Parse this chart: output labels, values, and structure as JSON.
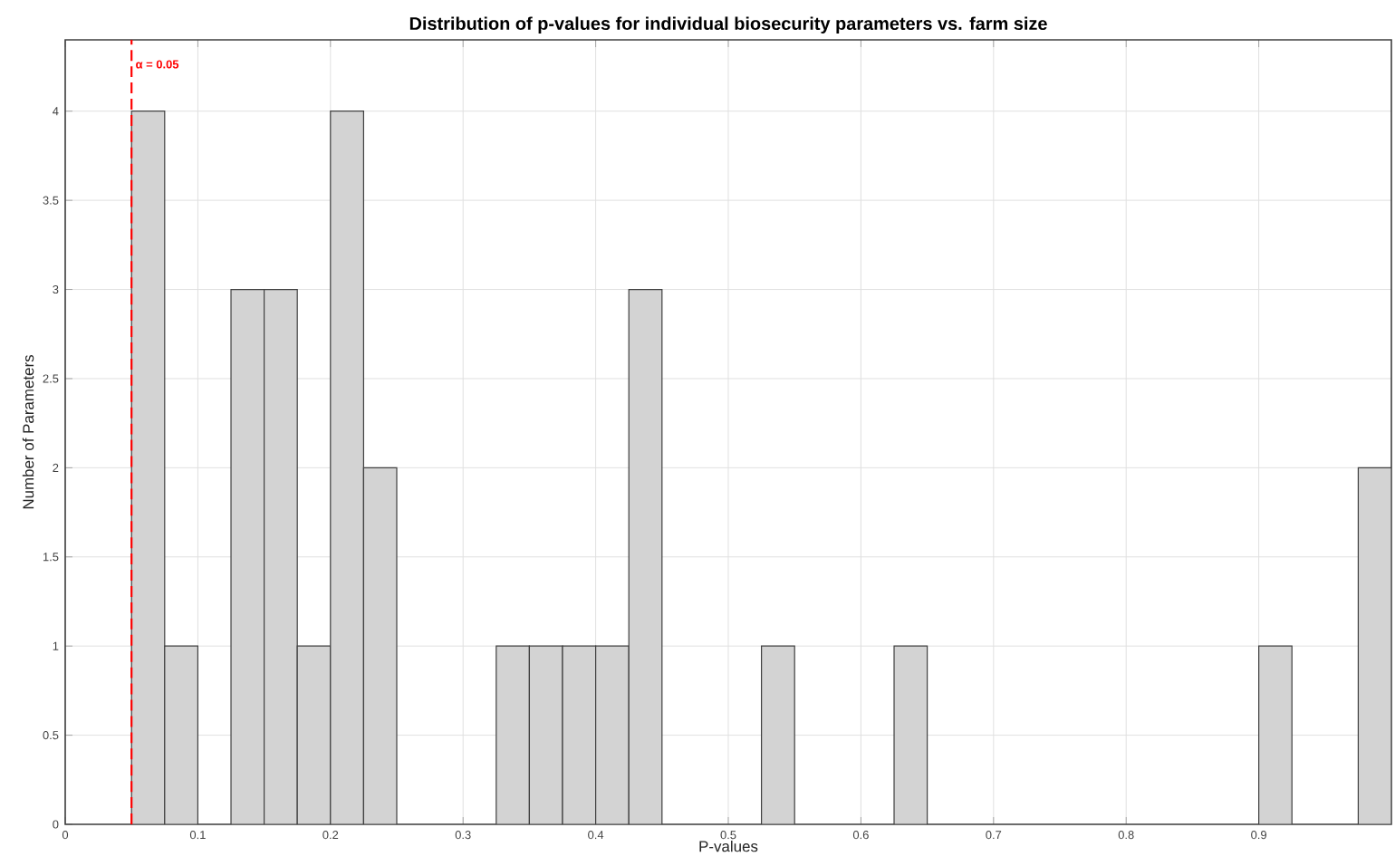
{
  "chart_data": {
    "type": "histogram",
    "title": "Distribution of p-values for individual biosecurity parameters vs. farm size",
    "xlabel": "P-values",
    "ylabel": "Number of Parameters",
    "bins": [
      0.05,
      0.075,
      0.1,
      0.125,
      0.15,
      0.175,
      0.2,
      0.225,
      0.25,
      0.275,
      0.3,
      0.325,
      0.35,
      0.375,
      0.4,
      0.425,
      0.45,
      0.475,
      0.5,
      0.525,
      0.55,
      0.575,
      0.6,
      0.625,
      0.65,
      0.675,
      0.7,
      0.725,
      0.75,
      0.775,
      0.8,
      0.825,
      0.85,
      0.875,
      0.9,
      0.925,
      0.95,
      0.975,
      1.0
    ],
    "values": [
      4,
      1,
      0,
      3,
      3,
      1,
      4,
      2,
      0,
      0,
      0,
      1,
      1,
      1,
      1,
      3,
      0,
      0,
      0,
      1,
      0,
      0,
      0,
      1,
      0,
      0,
      0,
      0,
      0,
      0,
      0,
      0,
      0,
      0,
      1,
      0,
      0,
      2
    ],
    "color": "#d3d3d3",
    "xlim": [
      0,
      1
    ],
    "xticks": [
      0,
      0.1,
      0.2,
      0.3,
      0.4,
      0.5,
      0.6,
      0.7,
      0.8,
      0.9
    ],
    "ylim": [
      0,
      4.4
    ],
    "yticks": [
      0,
      0.5,
      1,
      1.5,
      2,
      2.5,
      3,
      3.5,
      4
    ],
    "grid": true,
    "ref_lines": [
      {
        "axis": "x",
        "value": 0.05,
        "label": "α = 0.05",
        "color": "#ff0000",
        "line_style": "dashed"
      }
    ]
  }
}
